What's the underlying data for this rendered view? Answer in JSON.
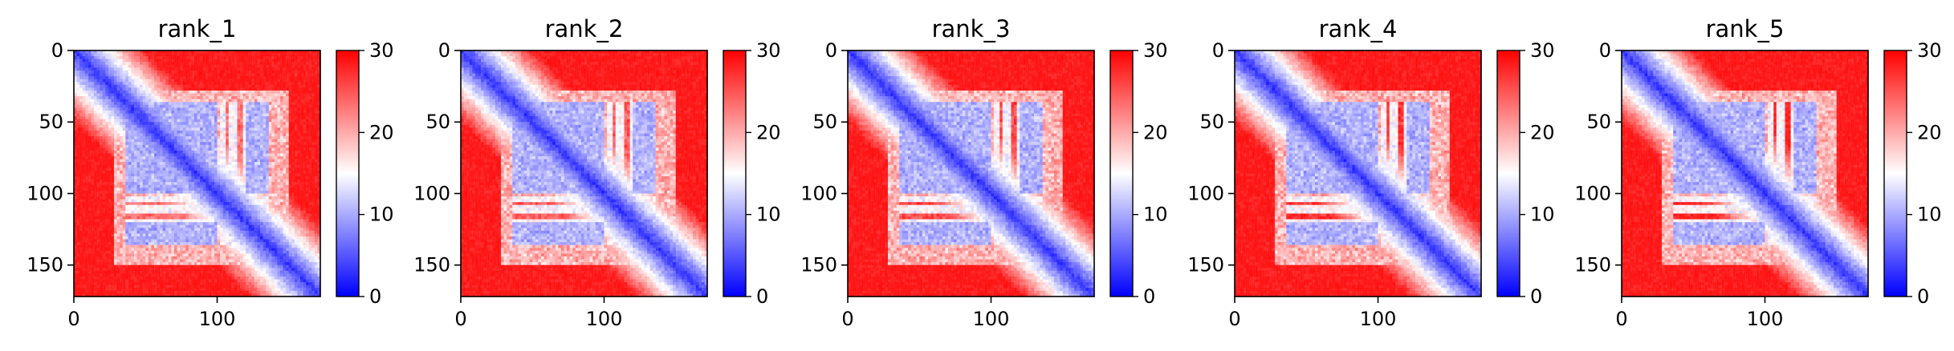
{
  "chart_data": [
    {
      "type": "heatmap",
      "title": "rank_1",
      "xticks": [
        0,
        100
      ],
      "yticks": [
        0,
        50,
        100,
        150
      ],
      "xlim": [
        0,
        172
      ],
      "ylim": [
        172,
        0
      ],
      "colorbar": {
        "ticks": [
          0,
          10,
          20,
          30
        ],
        "range": [
          0,
          30
        ],
        "cmap": "bwr"
      }
    },
    {
      "type": "heatmap",
      "title": "rank_2",
      "xticks": [
        0,
        100
      ],
      "yticks": [
        0,
        50,
        100,
        150
      ],
      "xlim": [
        0,
        172
      ],
      "ylim": [
        172,
        0
      ],
      "colorbar": {
        "ticks": [
          0,
          10,
          20,
          30
        ],
        "range": [
          0,
          30
        ],
        "cmap": "bwr"
      }
    },
    {
      "type": "heatmap",
      "title": "rank_3",
      "xticks": [
        0,
        100
      ],
      "yticks": [
        0,
        50,
        100,
        150
      ],
      "xlim": [
        0,
        172
      ],
      "ylim": [
        172,
        0
      ],
      "colorbar": {
        "ticks": [
          0,
          10,
          20,
          30
        ],
        "range": [
          0,
          30
        ],
        "cmap": "bwr"
      }
    },
    {
      "type": "heatmap",
      "title": "rank_4",
      "xticks": [
        0,
        100
      ],
      "yticks": [
        0,
        50,
        100,
        150
      ],
      "xlim": [
        0,
        172
      ],
      "ylim": [
        172,
        0
      ],
      "colorbar": {
        "ticks": [
          0,
          10,
          20,
          30
        ],
        "range": [
          0,
          30
        ],
        "cmap": "bwr"
      }
    },
    {
      "type": "heatmap",
      "title": "rank_5",
      "xticks": [
        0,
        100
      ],
      "yticks": [
        0,
        50,
        100,
        150
      ],
      "xlim": [
        0,
        172
      ],
      "ylim": [
        172,
        0
      ],
      "colorbar": {
        "ticks": [
          0,
          10,
          20,
          30
        ],
        "range": [
          0,
          30
        ],
        "cmap": "bwr"
      }
    }
  ],
  "colors": {
    "low": "#0000ff",
    "mid": "#ffffff",
    "high": "#ff0000"
  }
}
